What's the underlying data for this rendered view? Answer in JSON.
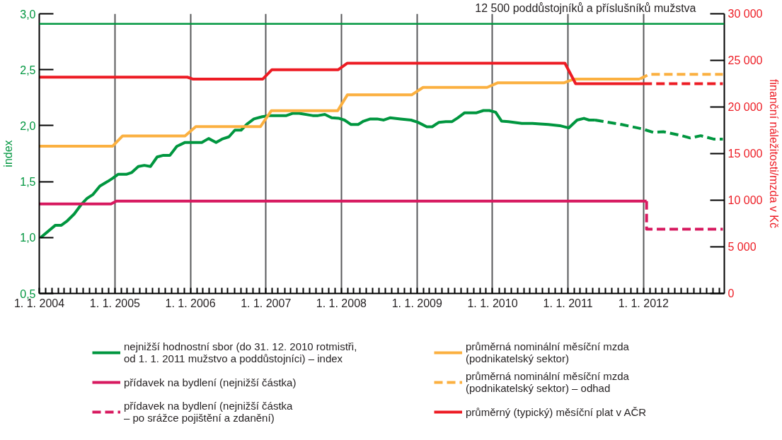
{
  "chart_data": {
    "type": "line",
    "ylabel": "index",
    "y2label": "finanční náležitosti/mzda v Kč",
    "xlim": [
      "2004-01-01",
      "2013-01-26"
    ],
    "ylim": [
      0.5,
      3.0
    ],
    "y2lim": [
      0,
      30000
    ],
    "xticks": [
      {
        "value": "2004-01-01",
        "label": "1. 1. 2004"
      },
      {
        "value": "2005-01-01",
        "label": "1. 1. 2005"
      },
      {
        "value": "2006-01-01",
        "label": "1. 1. 2006"
      },
      {
        "value": "2007-01-01",
        "label": "1. 1. 2007"
      },
      {
        "value": "2008-01-01",
        "label": "1. 1. 2008"
      },
      {
        "value": "2009-01-01",
        "label": "1. 1. 2009"
      },
      {
        "value": "2010-01-01",
        "label": "1. 1. 2010"
      },
      {
        "value": "2011-01-01",
        "label": "1. 1. 2011"
      },
      {
        "value": "2012-01-01",
        "label": "1. 1. 2012"
      }
    ],
    "yticks": [
      {
        "value": 0.5,
        "label": "0,5"
      },
      {
        "value": 1.0,
        "label": "1,0"
      },
      {
        "value": 1.5,
        "label": "1,5"
      },
      {
        "value": 2.0,
        "label": "2,0"
      },
      {
        "value": 2.5,
        "label": "2,5"
      },
      {
        "value": 3.0,
        "label": "3,0"
      }
    ],
    "y2ticks": [
      0,
      {
        "value": 5000,
        "label": "5 000"
      },
      {
        "value": 10000,
        "label": "10 000"
      },
      {
        "value": 15000,
        "label": "15 000"
      },
      {
        "value": 20000,
        "label": "20 000"
      },
      {
        "value": 25000,
        "label": "25 000"
      },
      {
        "value": 30000,
        "label": "30 000"
      }
    ],
    "grid": "x",
    "legend": "bottom",
    "ref_lines": [
      {
        "axis": "y",
        "value": 2.91,
        "label": "12 500 poddůstojníků a příslušníků mužstva",
        "color": "#00963f",
        "line_style": "solid"
      }
    ],
    "series": [
      {
        "name": "nejnižší hodnostní sbor (do 31. 12. 2010 rotmistři,\nod 1. 1. 2011 mužstvo a poddůstojníci) – index",
        "color": "#00963f",
        "line_style": "solid",
        "x": [
          "2004-01-08",
          "2004-03-19",
          "2004-04-17",
          "2004-05-16",
          "2004-06-18",
          "2004-07-24",
          "2004-08-19",
          "2004-09-17",
          "2004-10-20",
          "2004-11-26",
          "2004-12-21",
          "2005-01-16",
          "2005-02-25",
          "2005-03-22",
          "2005-04-24",
          "2005-05-23",
          "2005-06-22",
          "2005-07-24",
          "2005-08-23",
          "2005-09-24",
          "2005-10-27",
          "2005-12-06",
          "2006-01-12",
          "2006-02-25",
          "2006-03-30",
          "2006-05-05",
          "2006-06-03",
          "2006-07-06",
          "2006-08-04",
          "2006-09-03",
          "2006-10-02",
          "2006-11-04",
          "2006-12-14",
          "2007-01-19",
          "2007-04-10",
          "2007-05-12",
          "2007-06-11",
          "2007-08-15",
          "2007-09-10",
          "2007-10-13",
          "2007-11-15",
          "2007-12-21",
          "2008-01-16",
          "2008-02-17",
          "2008-03-22",
          "2008-04-17",
          "2008-05-20",
          "2008-06-22",
          "2008-07-24",
          "2008-08-23",
          "2008-10-13",
          "2008-12-03",
          "2009-01-05",
          "2009-02-17",
          "2009-03-15",
          "2009-04-17",
          "2009-05-20",
          "2009-06-18",
          "2009-07-17",
          "2009-08-19",
          "2009-10-16",
          "2009-11-18",
          "2009-12-17",
          "2010-01-16",
          "2010-02-14",
          "2010-03-19",
          "2010-05-23",
          "2010-07-13",
          "2010-08-19",
          "2010-09-28",
          "2010-11-22",
          "2011-01-05",
          "2011-02-14",
          "2011-03-19",
          "2011-04-13",
          "2011-05-12"
        ],
        "values": [
          1.0,
          1.11,
          1.11,
          1.15,
          1.21,
          1.3,
          1.35,
          1.385,
          1.46,
          1.5,
          1.53,
          1.565,
          1.565,
          1.58,
          1.635,
          1.645,
          1.635,
          1.72,
          1.735,
          1.735,
          1.815,
          1.85,
          1.85,
          1.85,
          1.885,
          1.85,
          1.88,
          1.9,
          1.96,
          1.96,
          2.015,
          2.06,
          2.08,
          2.09,
          2.09,
          2.11,
          2.11,
          2.09,
          2.09,
          2.1,
          2.07,
          2.065,
          2.05,
          2.01,
          2.01,
          2.04,
          2.06,
          2.06,
          2.05,
          2.07,
          2.06,
          2.05,
          2.03,
          1.99,
          1.99,
          2.03,
          2.035,
          2.035,
          2.07,
          2.115,
          2.115,
          2.135,
          2.135,
          2.12,
          2.04,
          2.035,
          2.02,
          2.02,
          2.015,
          2.01,
          2.0,
          1.98,
          2.05,
          2.065,
          2.05,
          2.05
        ]
      },
      {
        "color": "#00963f",
        "line_style": "dashed",
        "x": [
          "2011-05-12",
          "2011-09-17",
          "2011-12-28",
          "2012-02-17",
          "2012-04-09",
          "2012-06-24",
          "2012-08-14",
          "2012-10-04",
          "2012-12-05",
          "2013-01-19"
        ],
        "values": [
          2.05,
          2.01,
          1.97,
          1.94,
          1.945,
          1.915,
          1.89,
          1.91,
          1.88,
          1.88
        ]
      },
      {
        "name": "přídavek na bydlení (nejnižší částka)",
        "color": "#d7195f",
        "line_style": "solid",
        "axis": "y2",
        "x": [
          "2004-01-01",
          "2004-12-13",
          "2005-01-08",
          "2012-01-16"
        ],
        "values": [
          9600,
          9600,
          9900,
          9900
        ]
      },
      {
        "name": "přídavek na bydlení (nejnižší částka\n– po srážce pojištění a zdanění)",
        "color": "#d7195f",
        "line_style": "dashed",
        "axis": "y2",
        "x": [
          "2012-01-16",
          "2012-01-16",
          "2013-01-19"
        ],
        "values": [
          9900,
          6900,
          6900
        ]
      },
      {
        "name": "průměrná nominální měsíční mzda\n(podnikatelský sektor)",
        "color": "#fbb040",
        "line_style": "solid",
        "axis": "y2",
        "x": [
          "2004-01-01",
          "2004-12-21",
          "2005-02-07",
          "2005-12-06",
          "2006-01-27",
          "2006-12-06",
          "2007-01-27",
          "2007-12-14",
          "2008-01-30",
          "2008-12-06",
          "2009-01-30",
          "2009-12-06",
          "2010-01-27",
          "2010-12-14",
          "2011-01-30",
          "2011-12-14"
        ],
        "values": [
          15800,
          15800,
          16900,
          16900,
          17900,
          17900,
          19600,
          19600,
          21300,
          21300,
          22100,
          22100,
          22600,
          22600,
          23000,
          23000
        ]
      },
      {
        "name": "průměrná nominální měsíční mzda\n(podnikatelský sektor) – odhad",
        "color": "#fbb040",
        "line_style": "dashed",
        "axis": "y2",
        "x": [
          "2011-12-14",
          "2012-01-27",
          "2013-01-19"
        ],
        "values": [
          23000,
          23500,
          23500
        ]
      },
      {
        "name": "průměrný (typický) měsíční plat v AČR",
        "color": "#ed1c24",
        "line_style": "solid",
        "axis": "y2",
        "x": [
          "2004-01-01",
          "2005-12-17",
          "2006-01-12",
          "2006-12-17",
          "2007-01-30",
          "2007-12-17",
          "2008-01-30",
          "2010-12-17",
          "2011-02-07",
          "2012-01-01"
        ],
        "values": [
          23200,
          23200,
          23000,
          23000,
          24000,
          24000,
          24700,
          24700,
          22500,
          22500
        ]
      },
      {
        "color": "#ed1c24",
        "line_style": "dashed",
        "axis": "y2",
        "x": [
          "2012-01-01",
          "2013-01-19"
        ],
        "values": [
          22500,
          22500
        ]
      }
    ]
  }
}
